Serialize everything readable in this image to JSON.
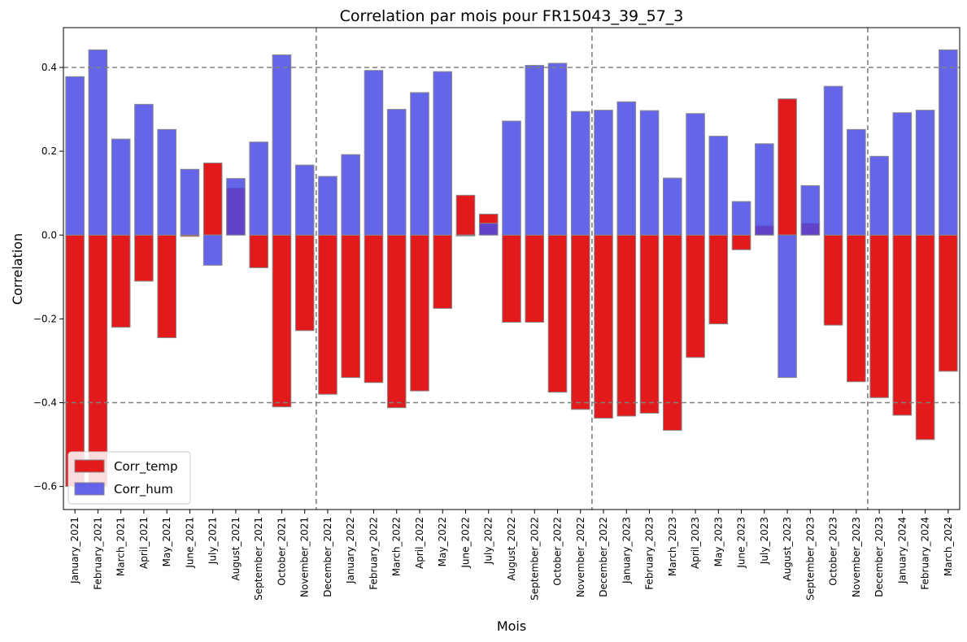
{
  "chart_data": {
    "type": "bar",
    "title": "Correlation par mois pour FR15043_39_57_3",
    "xlabel": "Mois",
    "ylabel": "Correlation",
    "ylim": [
      -0.655,
      0.495
    ],
    "yticks": [
      -0.6,
      -0.4,
      -0.2,
      0.0,
      0.2,
      0.4
    ],
    "ytick_labels": [
      "−0.6",
      "−0.4",
      "−0.2",
      "0.0",
      "0.2",
      "0.4"
    ],
    "hlines": [
      0.4,
      -0.4
    ],
    "vlines_after_index": [
      10,
      22,
      34
    ],
    "legend_position": "lower-left",
    "categories": [
      "January_2021",
      "February_2021",
      "March_2021",
      "April_2021",
      "May_2021",
      "June_2021",
      "July_2021",
      "August_2021",
      "September_2021",
      "October_2021",
      "November_2021",
      "December_2021",
      "January_2022",
      "February_2022",
      "March_2022",
      "April_2022",
      "May_2022",
      "June_2022",
      "July_2022",
      "August_2022",
      "September_2022",
      "October_2022",
      "November_2022",
      "December_2022",
      "January_2023",
      "February_2023",
      "March_2023",
      "April_2023",
      "May_2023",
      "June_2023",
      "July_2023",
      "August_2023",
      "September_2023",
      "October_2023",
      "November_2023",
      "December_2023",
      "January_2024",
      "February_2024",
      "March_2024"
    ],
    "series": [
      {
        "name": "Corr_temp",
        "color": "#e31a1c",
        "values": [
          -0.6,
          -0.6,
          -0.22,
          -0.11,
          -0.245,
          -0.003,
          0.172,
          0.112,
          -0.078,
          -0.41,
          -0.228,
          -0.38,
          -0.34,
          -0.352,
          -0.412,
          -0.372,
          -0.175,
          0.095,
          0.05,
          -0.208,
          -0.208,
          -0.375,
          -0.416,
          -0.437,
          -0.432,
          -0.425,
          -0.466,
          -0.292,
          -0.212,
          -0.035,
          0.022,
          0.325,
          0.028,
          -0.215,
          -0.35,
          -0.388,
          -0.43,
          -0.488,
          -0.325
        ]
      },
      {
        "name": "Corr_hum",
        "color": "#4a4ae6",
        "values": [
          0.378,
          0.442,
          0.229,
          0.312,
          0.252,
          0.157,
          -0.072,
          0.135,
          0.222,
          0.43,
          0.167,
          0.14,
          0.192,
          0.393,
          0.3,
          0.34,
          0.39,
          -0.002,
          0.028,
          0.272,
          0.405,
          0.41,
          0.295,
          0.298,
          0.318,
          0.297,
          0.136,
          0.29,
          0.236,
          0.08,
          0.218,
          -0.34,
          0.118,
          0.355,
          0.252,
          0.188,
          0.292,
          0.298,
          0.442
        ]
      }
    ]
  }
}
